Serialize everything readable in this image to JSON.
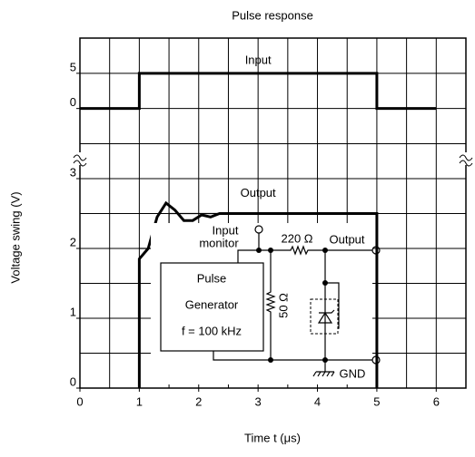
{
  "chart_data": {
    "type": "line",
    "title": "Pulse response",
    "x_label": "Time   t   (μs)",
    "y_label": "Voltage swing   (V)",
    "xlim": [
      0,
      6.5
    ],
    "xticks": [
      0,
      1,
      2,
      3,
      4,
      5,
      6
    ],
    "ylim": [
      0,
      3.5
    ],
    "yticks": [
      0,
      1,
      2,
      3
    ],
    "y2lim": [
      -5,
      10
    ],
    "y2ticks": [
      0,
      5
    ],
    "grid": true,
    "axis_break": true,
    "series": [
      {
        "name": "Input",
        "color": "#000000",
        "axis": "y2",
        "x": [
          0,
          1,
          1,
          5,
          5,
          6
        ],
        "values": [
          0,
          0,
          5,
          5,
          0,
          0
        ]
      },
      {
        "name": "Output",
        "color": "#000000",
        "x": [
          1,
          1,
          1.15,
          1.3,
          1.45,
          1.6,
          1.75,
          1.9,
          2.05,
          2.2,
          2.35,
          2.5,
          5,
          5
        ],
        "values": [
          0,
          1.85,
          2.0,
          2.45,
          2.65,
          2.55,
          2.4,
          2.4,
          2.48,
          2.45,
          2.5,
          2.5,
          2.5,
          0
        ]
      },
      {
        "color": "#000000",
        "x": [
          1,
          1.5,
          1.5,
          2.5
        ],
        "values": [
          2,
          2,
          2.5,
          2.5
        ]
      }
    ],
    "circuit": {
      "input_monitor": [
        "Input",
        "monitor"
      ],
      "resistor_series": "220 Ω",
      "output": "Output",
      "generator": [
        "Pulse",
        "Generator",
        "f = 100 kHz"
      ],
      "resistor_shunt": "50 Ω",
      "ground": "GND"
    }
  }
}
